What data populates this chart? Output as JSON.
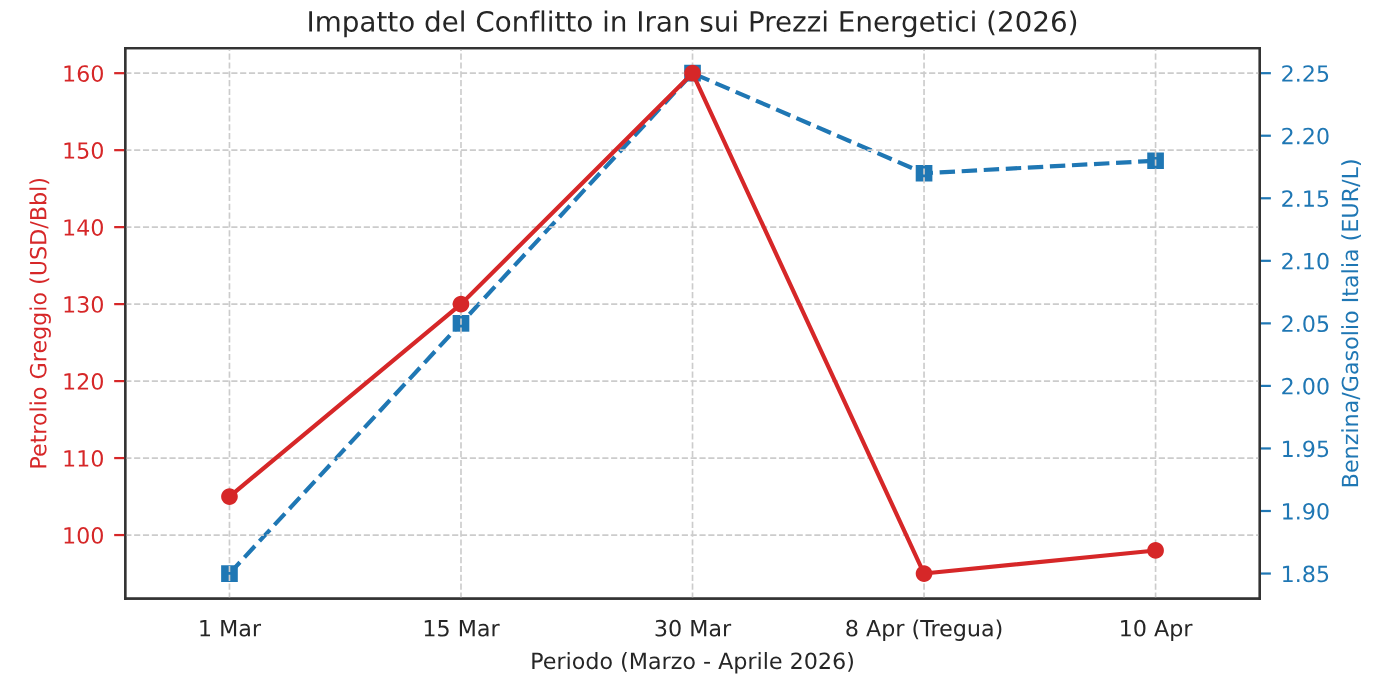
{
  "chart_data": {
    "type": "line",
    "title": "Impatto del Conflitto in Iran sui Prezzi Energetici (2026)",
    "xlabel": "Periodo (Marzo - Aprile 2026)",
    "ylabel": "Petrolio Greggio (USD/Bbl)",
    "y2label": "Benzina/Gasolio Italia (EUR/L)",
    "categories": [
      "1 Mar",
      "15 Mar",
      "30 Mar",
      "8 Apr (Tregua)",
      "10 Apr"
    ],
    "series": [
      {
        "color": "#d62728",
        "values": [
          105,
          130,
          160,
          95,
          98
        ],
        "marker": "circle",
        "line_style": "solid"
      },
      {
        "color": "#1f77b4",
        "values": [
          1.85,
          2.05,
          2.25,
          2.17,
          2.18
        ],
        "marker": "square",
        "line_style": "dashed",
        "axis": "y2"
      }
    ],
    "ylim": [
      91.75,
      163.25
    ],
    "yticks": [
      100,
      110,
      120,
      130,
      140,
      150,
      160
    ],
    "y2lim": [
      1.83,
      2.27
    ],
    "y2ticks": [
      {
        "value": 1.85,
        "label": "1.85"
      },
      {
        "value": 1.9,
        "label": "1.90"
      },
      {
        "value": 1.95,
        "label": "1.95"
      },
      {
        "value": 2.0,
        "label": "2.00"
      },
      {
        "value": 2.05,
        "label": "2.05"
      },
      {
        "value": 2.1,
        "label": "2.10"
      },
      {
        "value": 2.15,
        "label": "2.15"
      },
      {
        "value": 2.2,
        "label": "2.20"
      },
      {
        "value": 2.25,
        "label": "2.25"
      }
    ],
    "grid": true,
    "legend": false
  }
}
